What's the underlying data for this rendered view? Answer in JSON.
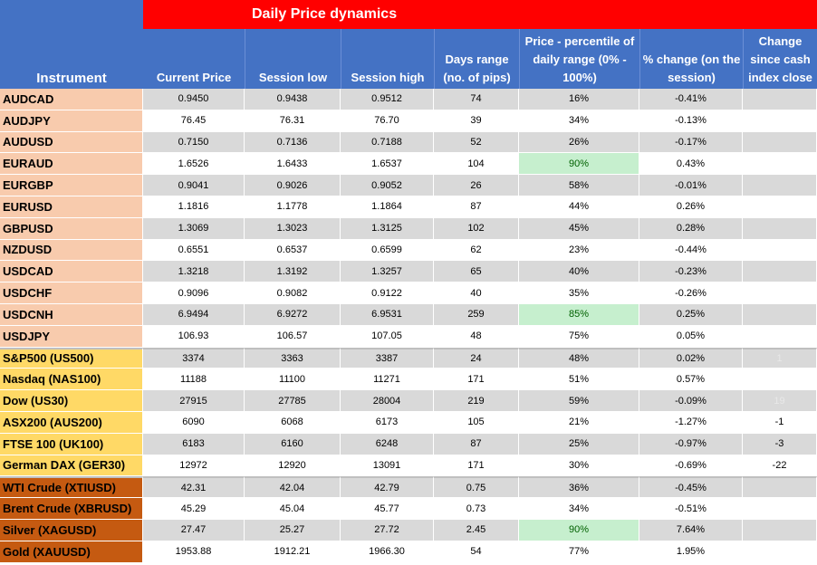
{
  "header": {
    "instrument_label": "Instrument",
    "banner_title": "Daily Price dynamics",
    "columns": [
      "Current Price",
      "Session  low",
      "Session high",
      "Days range (no. of pips)",
      "Price - percentile of daily range (0% - 100%)",
      "% change (on the session)",
      "Change since cash index close"
    ]
  },
  "colors": {
    "header_blue": "#4472c4",
    "banner_red": "#ff0000",
    "fx_group": "#f8cbad",
    "index_group": "#ffd966",
    "commodity_group": "#c55a11",
    "highlight_green": "#c6efce"
  },
  "rows": [
    {
      "group": "fx",
      "instrument": "AUDCAD",
      "current": "0.9450",
      "low": "0.9438",
      "high": "0.9512",
      "range": "74",
      "percentile": "16%",
      "change": "-0.41%",
      "cash": "",
      "highlight": false
    },
    {
      "group": "fx",
      "instrument": "AUDJPY",
      "current": "76.45",
      "low": "76.31",
      "high": "76.70",
      "range": "39",
      "percentile": "34%",
      "change": "-0.13%",
      "cash": "",
      "highlight": false
    },
    {
      "group": "fx",
      "instrument": "AUDUSD",
      "current": "0.7150",
      "low": "0.7136",
      "high": "0.7188",
      "range": "52",
      "percentile": "26%",
      "change": "-0.17%",
      "cash": "",
      "highlight": false
    },
    {
      "group": "fx",
      "instrument": "EURAUD",
      "current": "1.6526",
      "low": "1.6433",
      "high": "1.6537",
      "range": "104",
      "percentile": "90%",
      "change": "0.43%",
      "cash": "",
      "highlight": true
    },
    {
      "group": "fx",
      "instrument": "EURGBP",
      "current": "0.9041",
      "low": "0.9026",
      "high": "0.9052",
      "range": "26",
      "percentile": "58%",
      "change": "-0.01%",
      "cash": "",
      "highlight": false
    },
    {
      "group": "fx",
      "instrument": "EURUSD",
      "current": "1.1816",
      "low": "1.1778",
      "high": "1.1864",
      "range": "87",
      "percentile": "44%",
      "change": "0.26%",
      "cash": "",
      "highlight": false
    },
    {
      "group": "fx",
      "instrument": "GBPUSD",
      "current": "1.3069",
      "low": "1.3023",
      "high": "1.3125",
      "range": "102",
      "percentile": "45%",
      "change": "0.28%",
      "cash": "",
      "highlight": false
    },
    {
      "group": "fx",
      "instrument": "NZDUSD",
      "current": "0.6551",
      "low": "0.6537",
      "high": "0.6599",
      "range": "62",
      "percentile": "23%",
      "change": "-0.44%",
      "cash": "",
      "highlight": false
    },
    {
      "group": "fx",
      "instrument": "USDCAD",
      "current": "1.3218",
      "low": "1.3192",
      "high": "1.3257",
      "range": "65",
      "percentile": "40%",
      "change": "-0.23%",
      "cash": "",
      "highlight": false
    },
    {
      "group": "fx",
      "instrument": "USDCHF",
      "current": "0.9096",
      "low": "0.9082",
      "high": "0.9122",
      "range": "40",
      "percentile": "35%",
      "change": "-0.26%",
      "cash": "",
      "highlight": false
    },
    {
      "group": "fx",
      "instrument": "USDCNH",
      "current": "6.9494",
      "low": "6.9272",
      "high": "6.9531",
      "range": "259",
      "percentile": "85%",
      "change": "0.25%",
      "cash": "",
      "highlight": true
    },
    {
      "group": "fx",
      "instrument": "USDJPY",
      "current": "106.93",
      "low": "106.57",
      "high": "107.05",
      "range": "48",
      "percentile": "75%",
      "change": "0.05%",
      "cash": "",
      "highlight": false
    },
    {
      "group": "idx",
      "instrument": "S&P500 (US500)",
      "current": "3374",
      "low": "3363",
      "high": "3387",
      "range": "24",
      "percentile": "48%",
      "change": "0.02%",
      "cash": "1",
      "highlight": false
    },
    {
      "group": "idx",
      "instrument": "Nasdaq (NAS100)",
      "current": "11188",
      "low": "11100",
      "high": "11271",
      "range": "171",
      "percentile": "51%",
      "change": "0.57%",
      "cash": "",
      "highlight": false
    },
    {
      "group": "idx",
      "instrument": "Dow (US30)",
      "current": "27915",
      "low": "27785",
      "high": "28004",
      "range": "219",
      "percentile": "59%",
      "change": "-0.09%",
      "cash": "19",
      "highlight": false
    },
    {
      "group": "idx",
      "instrument": "ASX200 (AUS200)",
      "current": "6090",
      "low": "6068",
      "high": "6173",
      "range": "105",
      "percentile": "21%",
      "change": "-1.27%",
      "cash": "-1",
      "highlight": false
    },
    {
      "group": "idx",
      "instrument": "FTSE 100 (UK100)",
      "current": "6183",
      "low": "6160",
      "high": "6248",
      "range": "87",
      "percentile": "25%",
      "change": "-0.97%",
      "cash": "-3",
      "highlight": false
    },
    {
      "group": "idx",
      "instrument": "German DAX (GER30)",
      "current": "12972",
      "low": "12920",
      "high": "13091",
      "range": "171",
      "percentile": "30%",
      "change": "-0.69%",
      "cash": "-22",
      "highlight": false
    },
    {
      "group": "cmd",
      "instrument": "WTI Crude (XTIUSD)",
      "current": "42.31",
      "low": "42.04",
      "high": "42.79",
      "range": "0.75",
      "percentile": "36%",
      "change": "-0.45%",
      "cash": "",
      "highlight": false
    },
    {
      "group": "cmd",
      "instrument": "Brent  Crude (XBRUSD)",
      "current": "45.29",
      "low": "45.04",
      "high": "45.77",
      "range": "0.73",
      "percentile": "34%",
      "change": "-0.51%",
      "cash": "",
      "highlight": false
    },
    {
      "group": "cmd",
      "instrument": "Silver  (XAGUSD)",
      "current": "27.47",
      "low": "25.27",
      "high": "27.72",
      "range": "2.45",
      "percentile": "90%",
      "change": "7.64%",
      "cash": "",
      "highlight": true
    },
    {
      "group": "cmd",
      "instrument": "Gold (XAUUSD)",
      "current": "1953.88",
      "low": "1912.21",
      "high": "1966.30",
      "range": "54",
      "percentile": "77%",
      "change": "1.95%",
      "cash": "",
      "highlight": false
    }
  ]
}
